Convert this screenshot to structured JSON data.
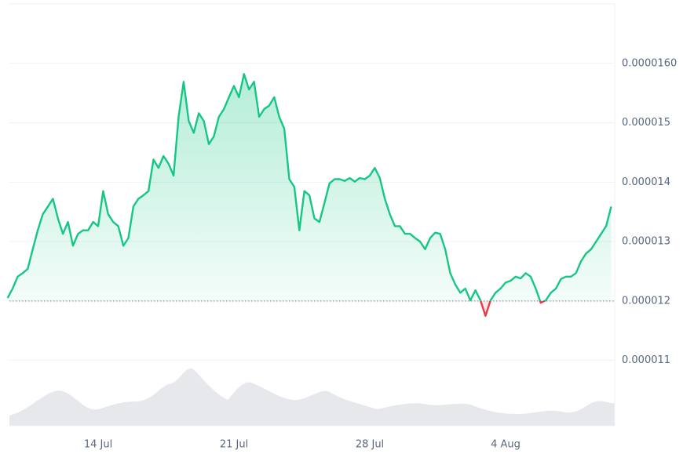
{
  "chart_data": {
    "type": "line",
    "categories": [
      null,
      null,
      null,
      null,
      null,
      null,
      null,
      null,
      null,
      null,
      null,
      null,
      null,
      null,
      null,
      null,
      null,
      null,
      "14 Jul",
      null,
      null,
      null,
      null,
      null,
      null,
      null,
      null,
      null,
      null,
      null,
      null,
      null,
      null,
      null,
      null,
      null,
      null,
      null,
      null,
      null,
      null,
      null,
      null,
      null,
      null,
      "21 Jul",
      null,
      null,
      null,
      null,
      null,
      null,
      null,
      null,
      null,
      null,
      null,
      null,
      null,
      null,
      null,
      null,
      null,
      null,
      null,
      null,
      null,
      null,
      null,
      null,
      null,
      null,
      "28 Jul",
      null,
      null,
      null,
      null,
      null,
      null,
      null,
      null,
      null,
      null,
      null,
      null,
      null,
      null,
      null,
      null,
      null,
      null,
      null,
      null,
      null,
      null,
      null,
      null,
      null,
      null,
      "4 Aug",
      null,
      null,
      null,
      null,
      null,
      null,
      null,
      null,
      null,
      null,
      null,
      null,
      null,
      null,
      null,
      null,
      null,
      null,
      null,
      null,
      null
    ],
    "values": [
      1.205e-05,
      1.221e-05,
      1.241e-05,
      1.247e-05,
      1.254e-05,
      1.287e-05,
      1.319e-05,
      1.346e-05,
      1.359e-05,
      1.372e-05,
      1.339e-05,
      1.313e-05,
      1.333e-05,
      1.293e-05,
      1.313e-05,
      1.319e-05,
      1.319e-05,
      1.333e-05,
      1.326e-05,
      1.385e-05,
      1.346e-05,
      1.333e-05,
      1.326e-05,
      1.293e-05,
      1.306e-05,
      1.359e-05,
      1.372e-05,
      1.378e-05,
      1.385e-05,
      1.438e-05,
      1.424e-05,
      1.444e-05,
      1.431e-05,
      1.411e-05,
      1.51e-05,
      1.569e-05,
      1.503e-05,
      1.483e-05,
      1.516e-05,
      1.503e-05,
      1.464e-05,
      1.477e-05,
      1.51e-05,
      1.523e-05,
      1.543e-05,
      1.562e-05,
      1.543e-05,
      1.582e-05,
      1.556e-05,
      1.569e-05,
      1.51e-05,
      1.523e-05,
      1.529e-05,
      1.543e-05,
      1.51e-05,
      1.49e-05,
      1.405e-05,
      1.392e-05,
      1.319e-05,
      1.385e-05,
      1.378e-05,
      1.339e-05,
      1.333e-05,
      1.365e-05,
      1.398e-05,
      1.405e-05,
      1.405e-05,
      1.402e-05,
      1.407e-05,
      1.401e-05,
      1.407e-05,
      1.405e-05,
      1.411e-05,
      1.424e-05,
      1.407e-05,
      1.372e-05,
      1.346e-05,
      1.326e-05,
      1.326e-05,
      1.313e-05,
      1.313e-05,
      1.306e-05,
      1.3e-05,
      1.287e-05,
      1.306e-05,
      1.315e-05,
      1.313e-05,
      1.287e-05,
      1.247e-05,
      1.228e-05,
      1.214e-05,
      1.221e-05,
      1.201e-05,
      1.218e-05,
      1.201e-05,
      1.175e-05,
      1.201e-05,
      1.214e-05,
      1.221e-05,
      1.231e-05,
      1.234e-05,
      1.241e-05,
      1.238e-05,
      1.247e-05,
      1.241e-05,
      1.221e-05,
      1.197e-05,
      1.201e-05,
      1.214e-05,
      1.221e-05,
      1.237e-05,
      1.241e-05,
      1.241e-05,
      1.247e-05,
      1.267e-05,
      1.28e-05,
      1.287e-05,
      1.3e-05,
      1.313e-05,
      1.326e-05,
      1.359e-05
    ],
    "color": "#16c784",
    "negative_color": "#ea3943",
    "baseline": 1.2e-05,
    "ylim": [
      9.9e-06,
      1.7e-05
    ],
    "yticks": [
      1.1e-05,
      1.2e-05,
      1.3e-05,
      1.4e-05,
      1.5e-05,
      {
        "value": 1.6e-05,
        "label": "0.0000160"
      }
    ],
    "grid": true
  }
}
